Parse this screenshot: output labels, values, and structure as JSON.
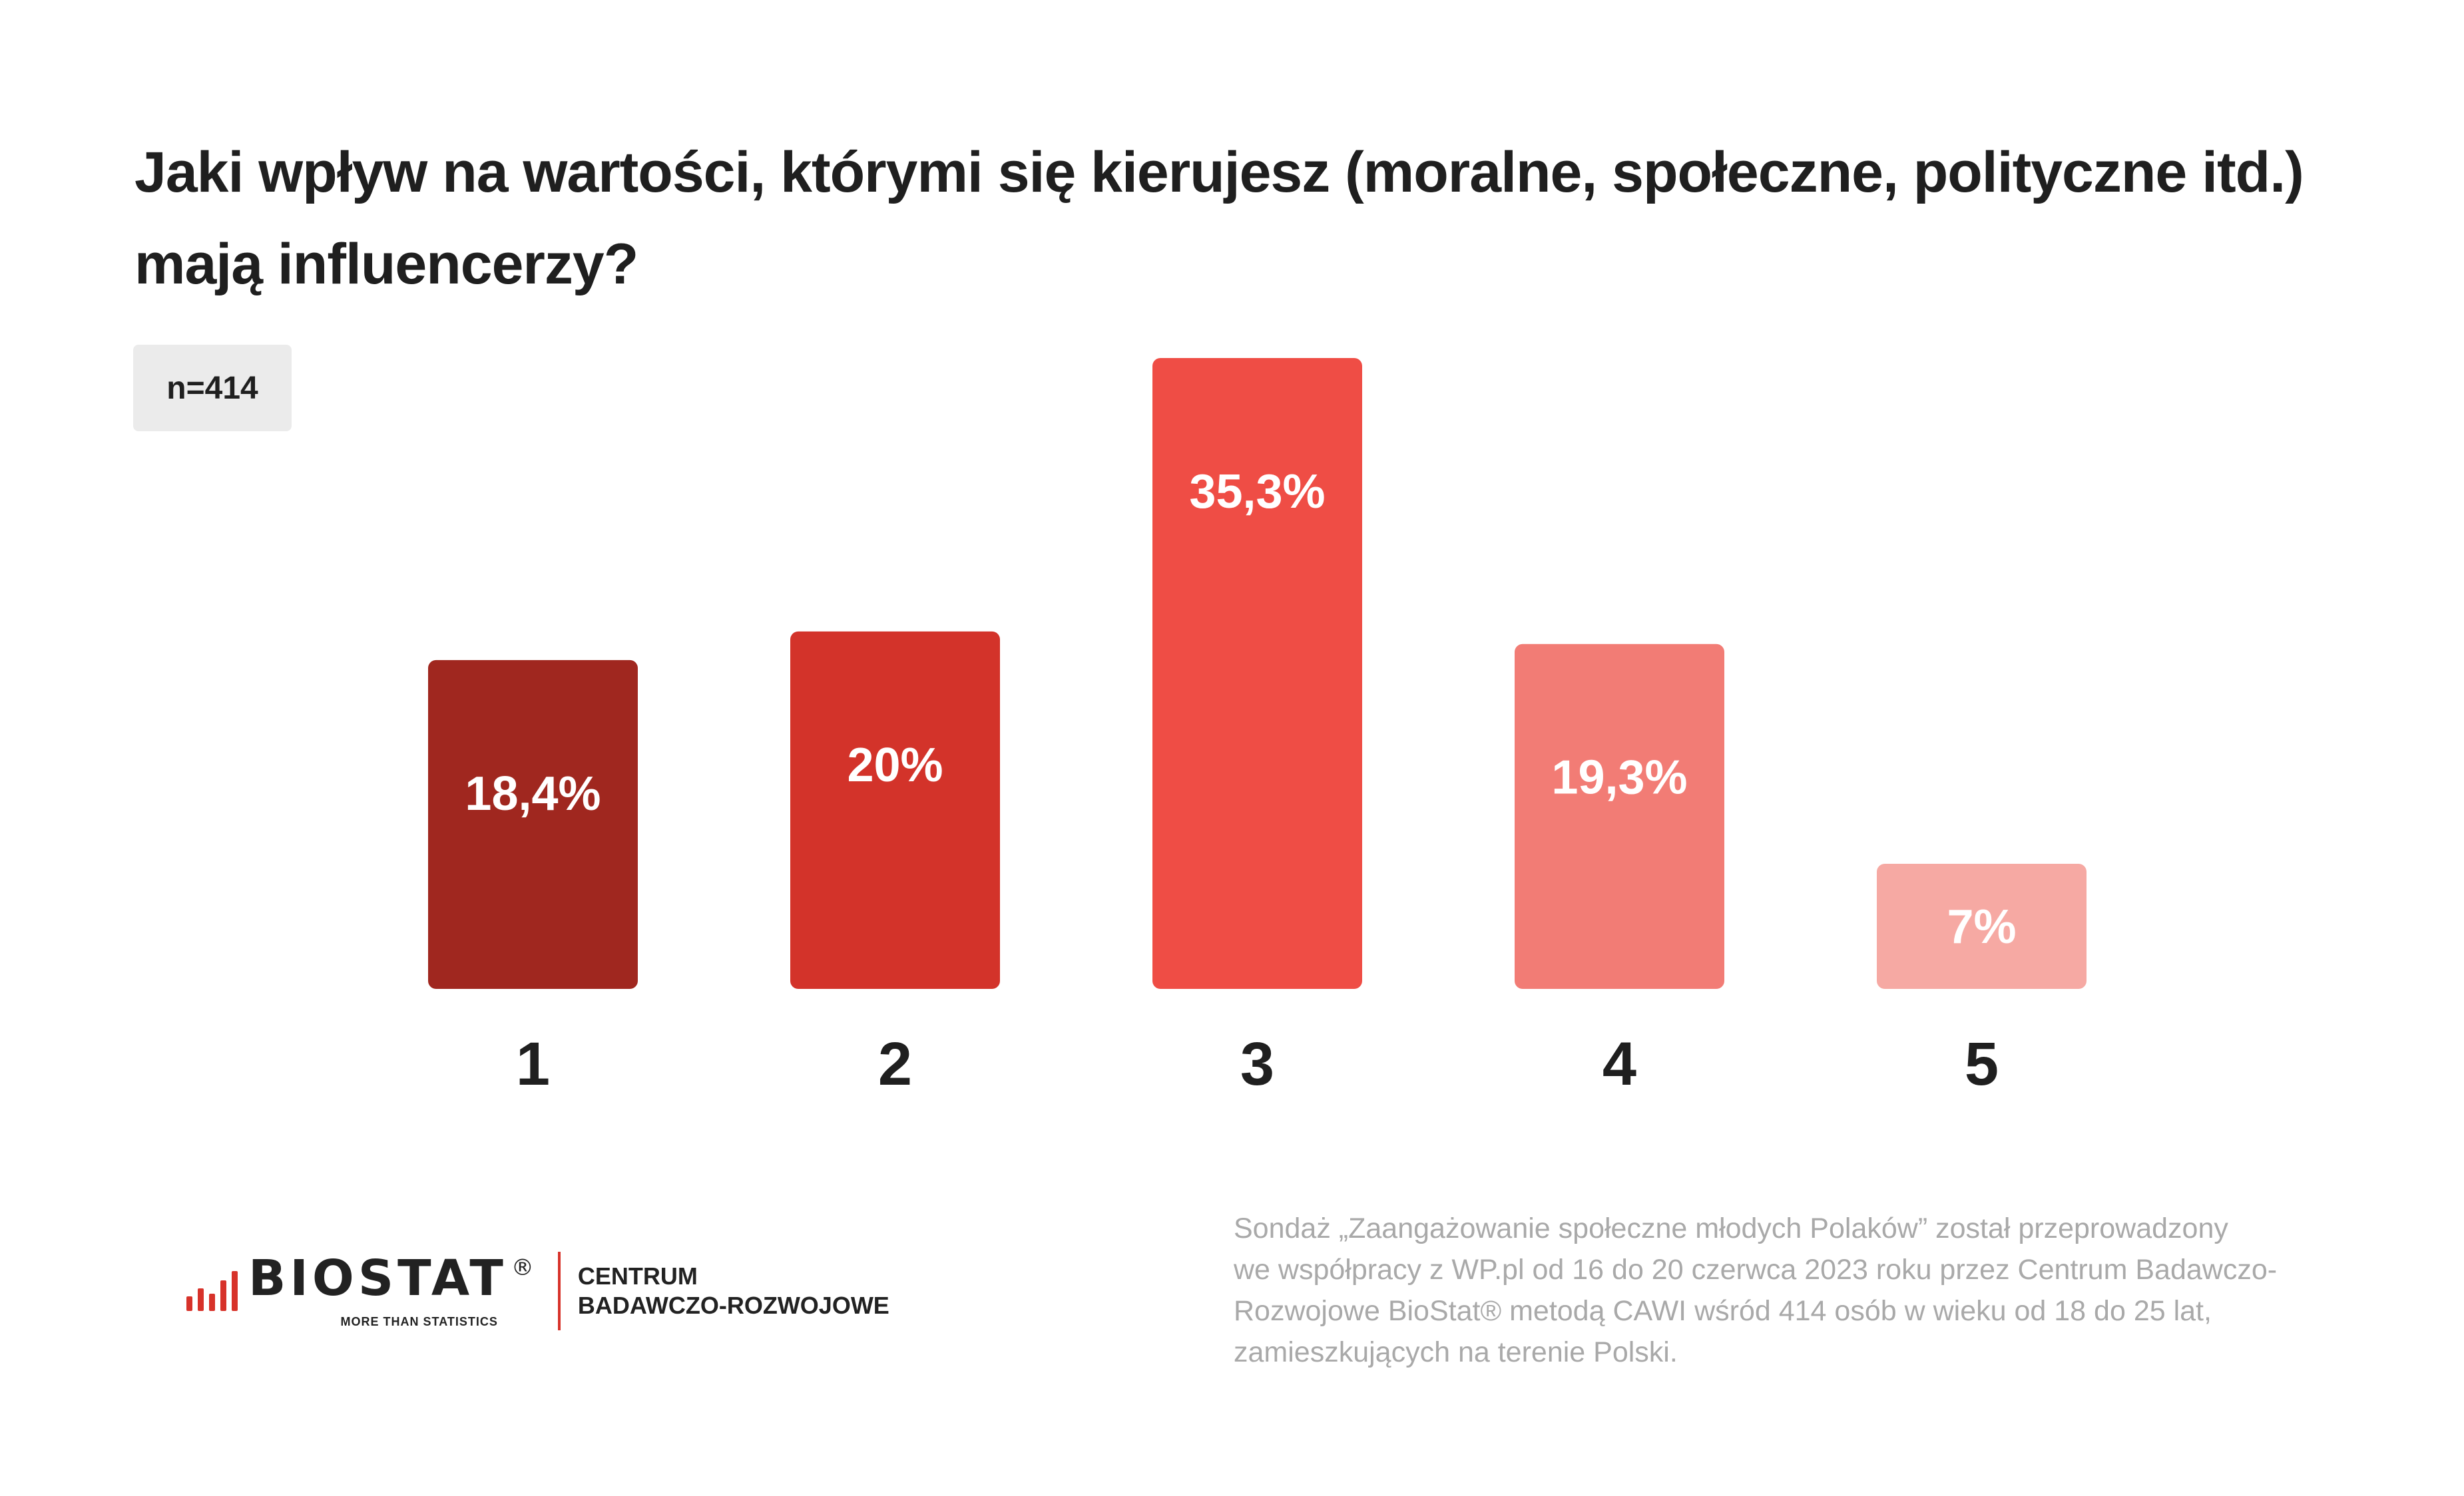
{
  "title_lines": [
    "Jaki wpływ na wartości, którymi się kierujesz (moralne, społeczne, polityczne itd.)",
    "mają influencerzy?"
  ],
  "sample_badge": "n=414",
  "chart_data": {
    "type": "bar",
    "title": "Jaki wpływ na wartości, którymi się kierujesz (moralne, społeczne, polityczne itd.) mają influencerzy?",
    "categories": [
      "1",
      "2",
      "3",
      "4",
      "5"
    ],
    "values": [
      18.4,
      20,
      35.3,
      19.3,
      7
    ],
    "value_labels": [
      "18,4%",
      "20%",
      "35,3%",
      "19,3%",
      "7%"
    ],
    "colors": [
      "#a0271f",
      "#d3332a",
      "#ef4d45",
      "#f27c75",
      "#f6a9a3"
    ],
    "ylim": [
      0,
      35.3
    ],
    "grid": false,
    "xlabel": "",
    "ylabel": ""
  },
  "logo": {
    "name": "BIOSTAT",
    "registered": "®",
    "tagline": "MORE THAN STATISTICS",
    "center_lines": [
      "CENTRUM",
      "BADAWCZO-ROZWOJOWE"
    ]
  },
  "source_lines": [
    "Sondaż  „Zaangażowanie społeczne młodych Polaków” został przeprowadzony",
    "we współpracy z WP.pl od 16 do 20 czerwca 2023 roku przez Centrum Badawczo-",
    "Rozwojowe BioStat® metodą CAWI wśród 414 osób w wieku od 18 do 25 lat,",
    "zamieszkujących na terenie Polski."
  ]
}
